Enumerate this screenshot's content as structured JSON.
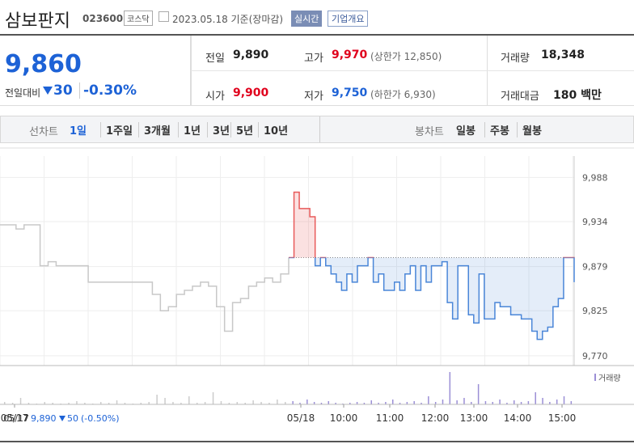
{
  "header": {
    "name": "삼보판지",
    "code": "023600",
    "market": "코스닥",
    "date": "2023.05.18 기준(장마감)",
    "realtime": "실시간",
    "company_info": "기업개요"
  },
  "quote": {
    "price": "9,860",
    "change_label": "전일대비",
    "change": "30",
    "change_rate": "-0.30%"
  },
  "stats": [
    [
      {
        "label": "전일",
        "value": "9,890"
      },
      {
        "label": "고가",
        "value": "9,970",
        "sub": "(상한가 12,850)"
      },
      {
        "label": "거래량",
        "value": "18,348"
      }
    ],
    [
      {
        "label": "시가",
        "value": "9,900"
      },
      {
        "label": "저가",
        "value": "9,750",
        "sub": "(하한가 6,930)"
      },
      {
        "label": "거래대금",
        "value": "180 백만"
      }
    ]
  ],
  "tabs": {
    "line_label": "선차트",
    "line": [
      "1일",
      "1주일",
      "3개월",
      "1년",
      "3년",
      "5년",
      "10년"
    ],
    "candle_label": "봉차트",
    "candle": [
      "일봉",
      "주봉",
      "월봉"
    ]
  },
  "chart_data": {
    "type": "line",
    "ylim": [
      9758,
      10024
    ],
    "yticks": [
      {
        "value": 9988,
        "label": "9,988"
      },
      {
        "value": 9934,
        "label": "9,934"
      },
      {
        "value": 9879,
        "label": "9,879"
      },
      {
        "value": 9825,
        "label": "9,825"
      },
      {
        "value": 9770,
        "label": "9,770"
      }
    ],
    "x_labels": [
      "05/17",
      "05/18",
      "10:00",
      "11:00",
      "12:00",
      "13:00",
      "14:00",
      "15:00"
    ],
    "baseline": 9890,
    "series": [
      {
        "color": "#c8c8c8",
        "values": [
          9930,
          9930,
          9925,
          9930,
          9930,
          9880,
          9885,
          9880,
          9880,
          9880,
          9880,
          9860,
          9860,
          9860,
          9860,
          9860,
          9860,
          9860,
          9860,
          9845,
          9825,
          9830,
          9845,
          9850,
          9855,
          9860,
          9855,
          9830,
          9800,
          9835,
          9840,
          9855,
          9860,
          9865,
          9860,
          9870,
          9890
        ]
      },
      {
        "color": "#4a86d8",
        "up_color": "#e85a5a",
        "values": [
          9890,
          9970,
          9950,
          9950,
          9940,
          9880,
          9890,
          9880,
          9870,
          9860,
          9850,
          9870,
          9860,
          9880,
          9880,
          9890,
          9860,
          9870,
          9850,
          9850,
          9860,
          9850,
          9870,
          9880,
          9850,
          9880,
          9860,
          9880,
          9880,
          9885,
          9835,
          9815,
          9880,
          9880,
          9820,
          9810,
          9870,
          9815,
          9815,
          9835,
          9830,
          9830,
          9820,
          9820,
          9815,
          9815,
          9800,
          9790,
          9800,
          9805,
          9830,
          9840,
          9890,
          9890,
          9860
        ]
      }
    ],
    "volume": {
      "name": "거래량",
      "color": "#9b8fd6",
      "prev": [
        3,
        2,
        8,
        2,
        1,
        3,
        2,
        1,
        2,
        4,
        2,
        1,
        3,
        2,
        5,
        2,
        1,
        2,
        3,
        12,
        8,
        3,
        2,
        10,
        2,
        3,
        15,
        4,
        2,
        3,
        2,
        5,
        3,
        2,
        6,
        3
      ],
      "today": [
        4,
        2,
        6,
        3,
        2,
        4,
        2,
        1,
        2,
        3,
        2,
        5,
        2,
        3,
        6,
        2,
        3,
        4,
        2,
        10,
        3,
        6,
        40,
        5,
        8,
        3,
        25,
        4,
        3,
        6,
        2,
        5,
        3,
        4,
        15,
        8,
        3,
        6,
        10,
        4
      ]
    },
    "legend": {
      "date": "05/17",
      "price": "9,890",
      "change": "50",
      "rate": "(-0.50%)"
    }
  }
}
